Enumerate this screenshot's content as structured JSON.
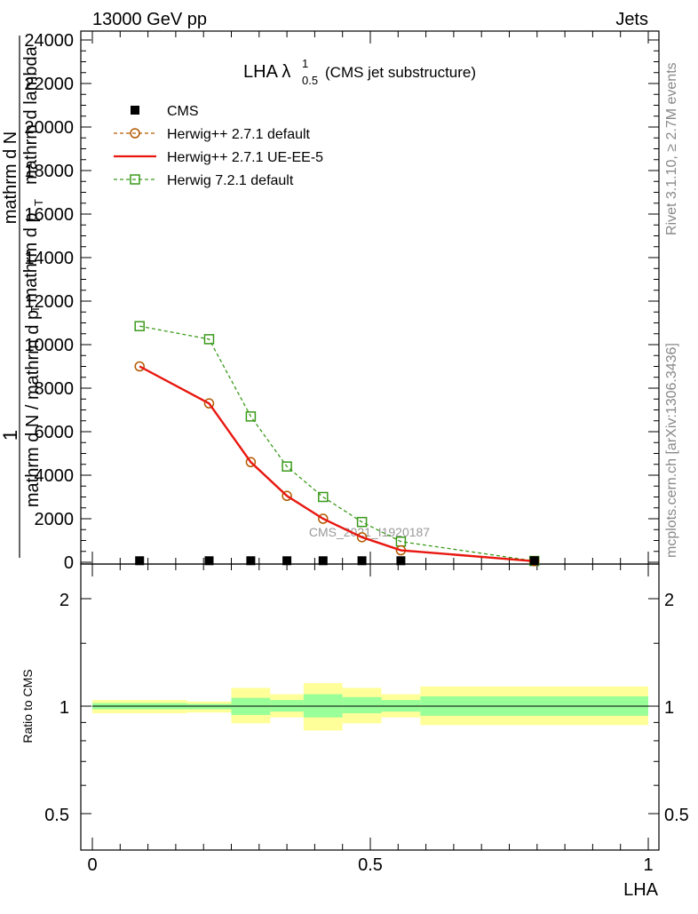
{
  "header": {
    "left": "13000 GeV pp",
    "right": "Jets"
  },
  "side": {
    "rivet": "Rivet 3.1.10, ≥ 2.7M events",
    "mcplots": "mcplots.cern.ch [arXiv:1306.3436]"
  },
  "colors": {
    "herwigpp_default": "#b35900",
    "herwigpp_ueee5": "#e8170f",
    "herwig7": "#3a9a1a",
    "band_yellow": "#ffff99",
    "band_green": "#99ff99",
    "data": "#000000"
  },
  "chart_data": {
    "type": "line",
    "title": "LHA",
    "title_lambda": "λ",
    "title_sup": "1",
    "title_sub": "0.5",
    "title_suffix": "(CMS jet substructure)",
    "watermark": "CMS_2021_I1920187",
    "xlabel": "LHA",
    "ylabel_num": "1",
    "ylabel_den_1": "mathrm d N / mathrm d p",
    "ylabel_den_1_sub": "T",
    "ylabel_den_2": "mathrm d N",
    "ylabel_den_3": "mathrm d p",
    "ylabel_den_3_sub": "T",
    "ylabel_den_4": "mathrm d lambda",
    "ratio_ylabel": "Ratio to CMS",
    "xlim": [
      0,
      1
    ],
    "ylim": [
      0,
      24000
    ],
    "ratio_ylim": [
      0.4,
      2.4
    ],
    "x_ticks": [
      0,
      0.5,
      1
    ],
    "x_tick_labels": [
      "0",
      "0.5",
      "1"
    ],
    "y_ticks": [
      0,
      2000,
      4000,
      6000,
      8000,
      10000,
      12000,
      14000,
      16000,
      18000,
      20000,
      22000,
      24000
    ],
    "y_tick_labels": [
      "0",
      "2000",
      "4000",
      "6000",
      "8000",
      "10000",
      "12000",
      "14000",
      "16000",
      "18000",
      "20000",
      "22000",
      "24000"
    ],
    "ratio_ticks": [
      0.5,
      1,
      2
    ],
    "ratio_tick_labels": [
      "0.5",
      "1",
      "2"
    ],
    "legend_position": "top-left",
    "series": [
      {
        "name": "CMS",
        "style": "data",
        "x": [
          0.085,
          0.21,
          0.285,
          0.35,
          0.415,
          0.485,
          0.555,
          0.795
        ],
        "y": [
          70,
          70,
          70,
          70,
          70,
          70,
          70,
          70
        ]
      },
      {
        "name": "Herwig++ 2.7.1 default",
        "style": "dashed-circle",
        "x": [
          0.085,
          0.21,
          0.285,
          0.35,
          0.415,
          0.485,
          0.555,
          0.795
        ],
        "y": [
          9000,
          7300,
          4600,
          3050,
          2000,
          1150,
          550,
          50
        ]
      },
      {
        "name": "Herwig++ 2.7.1 UE-EE-5",
        "style": "solid",
        "x": [
          0.085,
          0.21,
          0.285,
          0.35,
          0.415,
          0.485,
          0.555,
          0.795
        ],
        "y": [
          9000,
          7300,
          4600,
          3050,
          2000,
          1150,
          550,
          50
        ]
      },
      {
        "name": "Herwig 7.2.1 default",
        "style": "dashed-square",
        "x": [
          0.085,
          0.21,
          0.285,
          0.35,
          0.415,
          0.485,
          0.555,
          0.795
        ],
        "y": [
          10850,
          10250,
          6700,
          4400,
          3000,
          1850,
          950,
          60
        ]
      }
    ],
    "ratio_bins": [
      {
        "lo": 0.0,
        "hi": 0.17,
        "y_lo": 0.955,
        "y_hi": 1.04,
        "g_lo": 0.98,
        "g_hi": 1.02
      },
      {
        "lo": 0.17,
        "hi": 0.25,
        "y_lo": 0.96,
        "y_hi": 1.03,
        "g_lo": 0.98,
        "g_hi": 1.015
      },
      {
        "lo": 0.25,
        "hi": 0.32,
        "y_lo": 0.895,
        "y_hi": 1.125,
        "g_lo": 0.945,
        "g_hi": 1.055
      },
      {
        "lo": 0.32,
        "hi": 0.38,
        "y_lo": 0.93,
        "y_hi": 1.08,
        "g_lo": 0.965,
        "g_hi": 1.04
      },
      {
        "lo": 0.38,
        "hi": 0.45,
        "y_lo": 0.855,
        "y_hi": 1.16,
        "g_lo": 0.93,
        "g_hi": 1.08
      },
      {
        "lo": 0.45,
        "hi": 0.52,
        "y_lo": 0.895,
        "y_hi": 1.125,
        "g_lo": 0.955,
        "g_hi": 1.06
      },
      {
        "lo": 0.52,
        "hi": 0.59,
        "y_lo": 0.93,
        "y_hi": 1.08,
        "g_lo": 0.965,
        "g_hi": 1.04
      },
      {
        "lo": 0.59,
        "hi": 1.0,
        "y_lo": 0.885,
        "y_hi": 1.135,
        "g_lo": 0.94,
        "g_hi": 1.065
      }
    ]
  }
}
